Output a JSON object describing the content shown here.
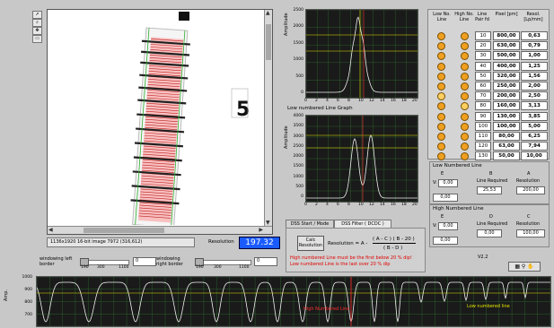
{
  "image_panel": {
    "status_text": "1136x1920 16-bit image 7972  (316,612)",
    "resolution_label": "Resolution",
    "resolution_value": "197.32"
  },
  "windowing": {
    "left_label": "windowing left border",
    "left_value": "0",
    "left_ticks": [
      "190",
      "300",
      "1100"
    ],
    "right_label": "windowing right border",
    "right_value": "0",
    "right_ticks": [
      "190",
      "300",
      "1100"
    ]
  },
  "graphs": {
    "top": {
      "ylabel": "Amplitude",
      "yticks": [
        "2500",
        "2000",
        "1500",
        "1000",
        "500",
        "0"
      ],
      "xticks": [
        "0",
        "2",
        "4",
        "6",
        "8",
        "10",
        "12",
        "14",
        "16",
        "18",
        "20"
      ]
    },
    "middle": {
      "title": "Low numbered Line Graph",
      "ylabel": "Amplitude",
      "yticks": [
        "4000",
        "3500",
        "3000",
        "2500",
        "2000",
        "1500",
        "1000",
        "500",
        "0"
      ],
      "xticks": [
        "0",
        "2",
        "4",
        "6",
        "8",
        "10",
        "12",
        "14",
        "16",
        "18",
        "20"
      ]
    }
  },
  "table": {
    "headers": {
      "low": "Low No. Line",
      "high": "High No. Line",
      "lpm": "Line Pair fd",
      "pixel": "Pixel [pm]",
      "resol": "Resol. [Lp/mm]"
    },
    "rows": [
      {
        "lpm": "10",
        "pixel": "800,00",
        "resol": "0,63"
      },
      {
        "lpm": "20",
        "pixel": "630,00",
        "resol": "0,79"
      },
      {
        "lpm": "30",
        "pixel": "500,00",
        "resol": "1,00"
      },
      {
        "lpm": "40",
        "pixel": "400,00",
        "resol": "1,25"
      },
      {
        "lpm": "50",
        "pixel": "320,00",
        "resol": "1,56"
      },
      {
        "lpm": "60",
        "pixel": "250,00",
        "resol": "2,00"
      },
      {
        "lpm": "70",
        "pixel": "200,00",
        "resol": "2,50"
      },
      {
        "lpm": "80",
        "pixel": "160,00",
        "resol": "3,13"
      },
      {
        "lpm": "90",
        "pixel": "130,00",
        "resol": "3,85"
      },
      {
        "lpm": "100",
        "pixel": "100,00",
        "resol": "5,00"
      },
      {
        "lpm": "110",
        "pixel": "80,00",
        "resol": "6,25"
      },
      {
        "lpm": "120",
        "pixel": "63,00",
        "resol": "7,94"
      },
      {
        "lpm": "130",
        "pixel": "50,00",
        "resol": "10,00"
      }
    ]
  },
  "low_line": {
    "title": "Low Numbered Line",
    "e_label": "E",
    "e_value": "0,00",
    "b_label": "B",
    "b_caption": "Line Required",
    "b_value": "25,53",
    "a_label": "A",
    "a_caption": "Resolution",
    "a_value": "200,00",
    "v_value": "0,00"
  },
  "high_line": {
    "title": "High Numbered Line",
    "e_label": "E",
    "e_value": "0,00",
    "d_label": "D",
    "d_caption": "Line Required",
    "d_value": "0,00",
    "c_label": "C",
    "c_caption": "Resolution",
    "c_value": "100,00",
    "v_value": "0,00"
  },
  "tabs": {
    "tab1": "DSS Start / Mode",
    "tab2": "DSS Filter ( DCDC )"
  },
  "calc": {
    "button": "Calc Resolution",
    "formula_label": "Resolution = A -",
    "numerator": "( A - C ) ( B - 20 )",
    "denominator": "( B - D )",
    "warn1": "High numbered Line must be the first below 20 % dip!",
    "warn2": "Low numbered Line is the last over 20 % dip",
    "version": "V2.2"
  },
  "bottom_graph": {
    "yticks": [
      "1000",
      "900",
      "800",
      "700"
    ],
    "ylabel": "Amp.",
    "high_label": "High Numbered Line",
    "low_label": "Low numbered line"
  },
  "colors": {
    "accent": "#1a5cff",
    "led": "#f0a020",
    "plot_bg": "#1a1a1a",
    "trace": "#e8e8e8"
  }
}
